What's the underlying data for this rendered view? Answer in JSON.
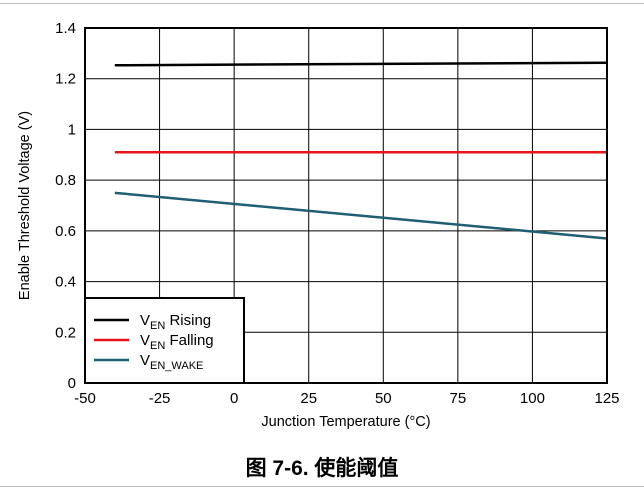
{
  "caption": "图 7-6. 使能阈值",
  "chart_data": {
    "type": "line",
    "xlabel": "Junction Temperature (°C)",
    "ylabel": "Enable Threshold Voltage (V)",
    "xlim": [
      -50,
      125
    ],
    "ylim": [
      0,
      1.4
    ],
    "x_ticks": [
      -50,
      -25,
      0,
      25,
      50,
      75,
      100,
      125
    ],
    "y_ticks": [
      0,
      0.2,
      0.4,
      0.6,
      0.8,
      1,
      1.2,
      1.4
    ],
    "x_tick_labels": [
      "-50",
      "-25",
      "0",
      "25",
      "50",
      "75",
      "100",
      "125"
    ],
    "y_tick_labels": [
      "0",
      "0.2",
      "0.4",
      "0.6",
      "0.8",
      "1",
      "1.2",
      "1.4"
    ],
    "grid": true,
    "legend_position": "bottom-left",
    "series": [
      {
        "name": "V_EN Rising",
        "legend_main": "V",
        "legend_sub": "EN",
        "legend_rest": " Rising",
        "color": "#000000",
        "x": [
          -40,
          125
        ],
        "y": [
          1.253,
          1.263
        ]
      },
      {
        "name": "V_EN Falling",
        "legend_main": "V",
        "legend_sub": "EN",
        "legend_rest": " Falling",
        "color": "#e8141c",
        "x": [
          -40,
          125
        ],
        "y": [
          0.91,
          0.91
        ]
      },
      {
        "name": "V_EN_WAKE",
        "legend_main": "V",
        "legend_sub": "EN_WAKE",
        "legend_rest": "",
        "color": "#1f5f73",
        "x": [
          -40,
          125
        ],
        "y": [
          0.75,
          0.57
        ]
      }
    ]
  }
}
